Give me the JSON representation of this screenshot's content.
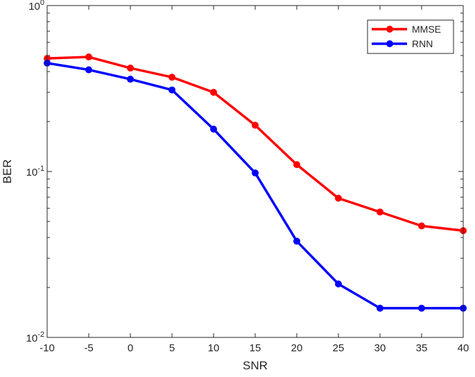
{
  "chart_data": {
    "type": "line",
    "title": "",
    "xlabel": "SNR",
    "ylabel": "BER",
    "yscale": "log",
    "xlim": [
      -10,
      40
    ],
    "ylim": [
      0.01,
      1
    ],
    "grid": false,
    "legend_position": "top-right",
    "x": [
      -10,
      -5,
      0,
      5,
      10,
      15,
      20,
      25,
      30,
      35,
      40
    ],
    "x_tick_labels": [
      "-10",
      "-5",
      "0",
      "5",
      "10",
      "15",
      "20",
      "25",
      "30",
      "35",
      "40"
    ],
    "y_ticks": [
      {
        "value": 1,
        "base": "10",
        "exp": "0"
      },
      {
        "value": 0.1,
        "base": "10",
        "exp": "-1"
      },
      {
        "value": 0.01,
        "base": "10",
        "exp": "-2"
      }
    ],
    "series": [
      {
        "name": "MMSE",
        "color": "#ff0000",
        "marker": "circle",
        "values": [
          0.48,
          0.49,
          0.42,
          0.37,
          0.3,
          0.19,
          0.11,
          0.069,
          0.057,
          0.047,
          0.044
        ]
      },
      {
        "name": "RNN",
        "color": "#0000ff",
        "marker": "circle",
        "values": [
          0.45,
          0.41,
          0.36,
          0.31,
          0.18,
          0.098,
          0.038,
          0.021,
          0.015,
          0.015,
          0.015
        ]
      }
    ]
  }
}
